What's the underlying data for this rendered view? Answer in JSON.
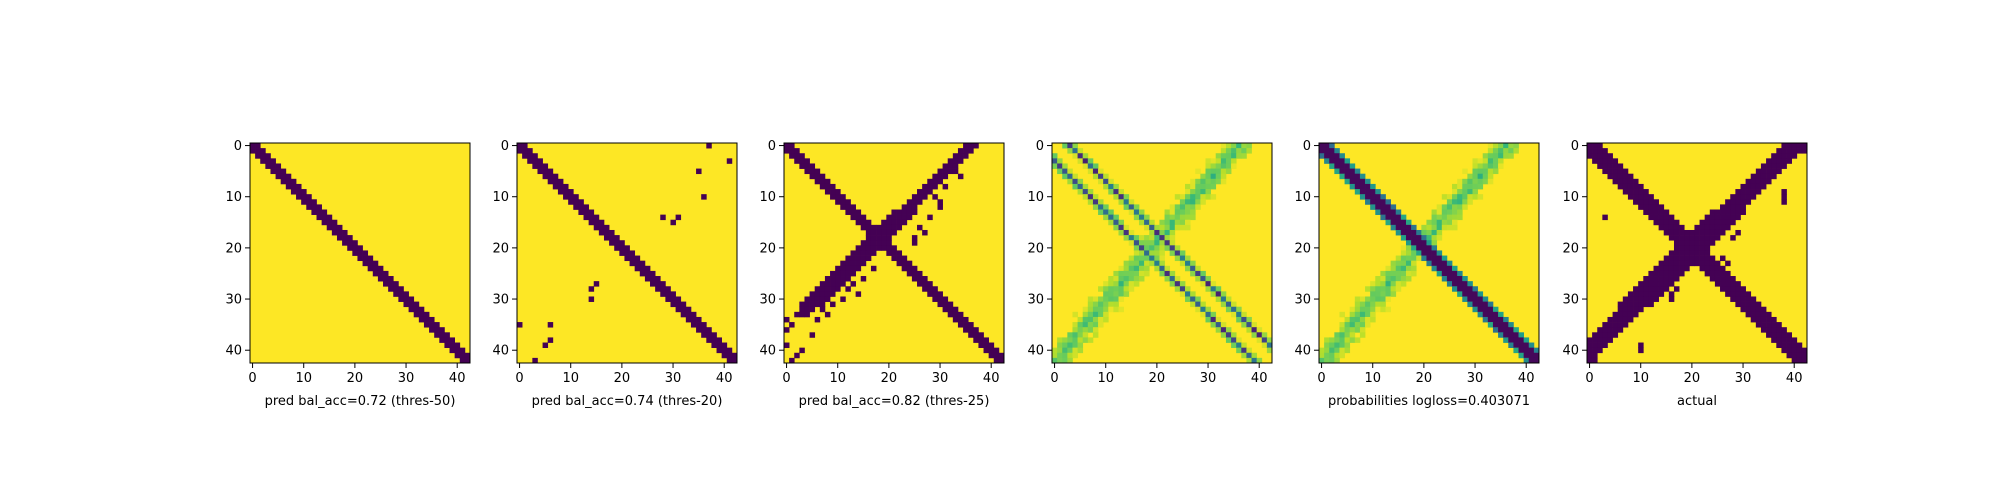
{
  "figure": {
    "n": 43,
    "ticks": [
      0,
      10,
      20,
      30,
      40
    ],
    "colormap": "viridis",
    "colors": {
      "low": "#440154",
      "high": "#fde725",
      "axes": "#000000",
      "background": "#ffffff"
    }
  },
  "chart_data": [
    {
      "type": "heatmap",
      "title": "",
      "xlabel": "pred bal_acc=0.72 (thres-50)",
      "ylabel": "",
      "x_ticks": [
        "0",
        "10",
        "20",
        "30",
        "40"
      ],
      "y_ticks": [
        "0",
        "10",
        "20",
        "30",
        "40"
      ],
      "xlim": [
        0,
        42
      ],
      "ylim": [
        42,
        0
      ],
      "value_range": [
        0,
        1
      ],
      "pattern": "binary main-diagonal band (value 0 within |i-j|<=1, else 1)",
      "band_halfwidth": 1,
      "anti_band": false,
      "anti_center_start": 30,
      "blobs": []
    },
    {
      "type": "heatmap",
      "title": "",
      "xlabel": "pred bal_acc=0.74 (thres-20)",
      "ylabel": "",
      "x_ticks": [
        "0",
        "10",
        "20",
        "30",
        "40"
      ],
      "y_ticks": [
        "0",
        "10",
        "20",
        "30",
        "40"
      ],
      "xlim": [
        0,
        42
      ],
      "ylim": [
        42,
        0
      ],
      "value_range": [
        0,
        1
      ],
      "pattern": "binary main-diagonal band with scattered off-band zero cells",
      "band_halfwidth": 1,
      "anti_band": false,
      "anti_center_start": 30,
      "blobs": [
        [
          0,
          37
        ],
        [
          3,
          41
        ],
        [
          5,
          35
        ],
        [
          10,
          36
        ],
        [
          14,
          31
        ],
        [
          14,
          28
        ],
        [
          15,
          30
        ],
        [
          27,
          15
        ],
        [
          28,
          14
        ],
        [
          30,
          14
        ],
        [
          35,
          0
        ],
        [
          35,
          6
        ],
        [
          38,
          6
        ],
        [
          39,
          5
        ],
        [
          42,
          3
        ]
      ]
    },
    {
      "type": "heatmap",
      "title": "",
      "xlabel": "pred bal_acc=0.82 (thres-25)",
      "ylabel": "",
      "x_ticks": [
        "0",
        "10",
        "20",
        "30",
        "40"
      ],
      "y_ticks": [
        "0",
        "10",
        "20",
        "30",
        "40"
      ],
      "xlim": [
        0,
        42
      ],
      "ylim": [
        42,
        0
      ],
      "value_range": [
        0,
        1
      ],
      "pattern": "binary main-diagonal band plus broken anti-diagonal band",
      "band_halfwidth": 1,
      "anti_band": true,
      "anti_center_start": 36,
      "blobs": [
        [
          0,
          35
        ],
        [
          1,
          36
        ],
        [
          5,
          33
        ],
        [
          6,
          34
        ],
        [
          8,
          31
        ],
        [
          10,
          29
        ],
        [
          11,
          30
        ],
        [
          12,
          30
        ],
        [
          14,
          28
        ],
        [
          16,
          26
        ],
        [
          17,
          27
        ],
        [
          18,
          25
        ],
        [
          19,
          25
        ],
        [
          24,
          17
        ],
        [
          26,
          15
        ],
        [
          27,
          13
        ],
        [
          28,
          12
        ],
        [
          29,
          14
        ],
        [
          30,
          11
        ],
        [
          31,
          9
        ],
        [
          32,
          7
        ],
        [
          33,
          8
        ],
        [
          34,
          6
        ],
        [
          34,
          0
        ],
        [
          35,
          1
        ],
        [
          36,
          0
        ],
        [
          37,
          5
        ],
        [
          39,
          0
        ],
        [
          40,
          3
        ],
        [
          41,
          2
        ],
        [
          42,
          1
        ]
      ]
    },
    {
      "type": "heatmap",
      "title": "",
      "xlabel": "",
      "ylabel": "",
      "x_ticks": [
        "0",
        "10",
        "20",
        "30",
        "40"
      ],
      "y_ticks": [
        "0",
        "10",
        "20",
        "30",
        "40"
      ],
      "xlim": [
        0,
        42
      ],
      "ylim": [
        42,
        0
      ],
      "value_range": [
        0,
        1
      ],
      "pattern": "continuous probabilities: thin low-valued lines at offsets +/-3 from the main diagonal, greenish diffuse anti-diagonal band",
      "band_halfwidth": 0,
      "anti_band": true,
      "anti_center_start": 36,
      "blobs": []
    },
    {
      "type": "heatmap",
      "title": "",
      "xlabel": "probabilities logloss=0.403071",
      "ylabel": "",
      "x_ticks": [
        "0",
        "10",
        "20",
        "30",
        "40"
      ],
      "y_ticks": [
        "0",
        "10",
        "20",
        "30",
        "40"
      ],
      "xlim": [
        0,
        42
      ],
      "ylim": [
        42,
        0
      ],
      "value_range": [
        0,
        1
      ],
      "pattern": "continuous probabilities: dark main-diagonal band, greenish diffuse anti-diagonal band",
      "band_halfwidth": 1,
      "anti_band": true,
      "anti_center_start": 36,
      "blobs": []
    },
    {
      "type": "heatmap",
      "title": "",
      "xlabel": "actual",
      "ylabel": "",
      "x_ticks": [
        "0",
        "10",
        "20",
        "30",
        "40"
      ],
      "y_ticks": [
        "0",
        "10",
        "20",
        "30",
        "40"
      ],
      "xlim": [
        0,
        42
      ],
      "ylim": [
        42,
        0
      ],
      "value_range": [
        0,
        1
      ],
      "pattern": "binary X shape: main-diagonal band and anti-diagonal band of value 0",
      "band_halfwidth": 2,
      "anti_band": true,
      "anti_center_start": 40,
      "blobs": [
        [
          0,
          42
        ],
        [
          1,
          42
        ],
        [
          6,
          36
        ],
        [
          9,
          38
        ],
        [
          10,
          38
        ],
        [
          11,
          38
        ],
        [
          14,
          3
        ],
        [
          15,
          28
        ],
        [
          17,
          29
        ],
        [
          18,
          28
        ],
        [
          22,
          26
        ],
        [
          23,
          27
        ],
        [
          28,
          17
        ],
        [
          29,
          16
        ],
        [
          30,
          16
        ],
        [
          33,
          5
        ],
        [
          33,
          6
        ],
        [
          34,
          5
        ],
        [
          39,
          10
        ],
        [
          40,
          10
        ],
        [
          41,
          0
        ],
        [
          42,
          1
        ]
      ]
    }
  ]
}
